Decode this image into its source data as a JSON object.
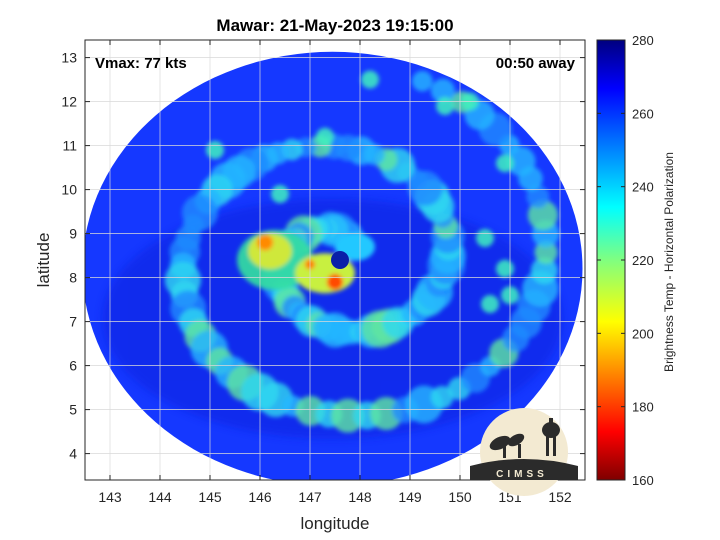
{
  "chart_data": {
    "type": "heatmap",
    "title": "Mawar: 21-May-2023 19:15:00",
    "xlabel": "longitude",
    "ylabel": "latitude",
    "annotations": {
      "vmax": "Vmax: 77 kts",
      "away": "00:50 away"
    },
    "xlim": [
      142.5,
      152.5
    ],
    "ylim": [
      3.4,
      13.4
    ],
    "xticks": [
      143,
      144,
      145,
      146,
      147,
      148,
      149,
      150,
      151,
      152
    ],
    "yticks": [
      4,
      5,
      6,
      7,
      8,
      9,
      10,
      11,
      12,
      13
    ],
    "grid": true,
    "colorbar": {
      "label": "Brightness Temp - Horizontal Polarization",
      "range": [
        160,
        280
      ],
      "ticks": [
        160,
        180,
        200,
        220,
        240,
        260,
        280
      ],
      "colormap": "jet"
    },
    "storm_center": {
      "lon": 147.6,
      "lat": 8.4
    },
    "swath_center": {
      "lon": 147.45,
      "lat": 8.2
    },
    "logo_text": "CIMSS"
  },
  "colors": {
    "background": "#ffffff",
    "axis": "#262626",
    "grid": "#d9d9d9",
    "logo_bg": "#f3ead2",
    "logo_dark": "#2b2b2b"
  }
}
